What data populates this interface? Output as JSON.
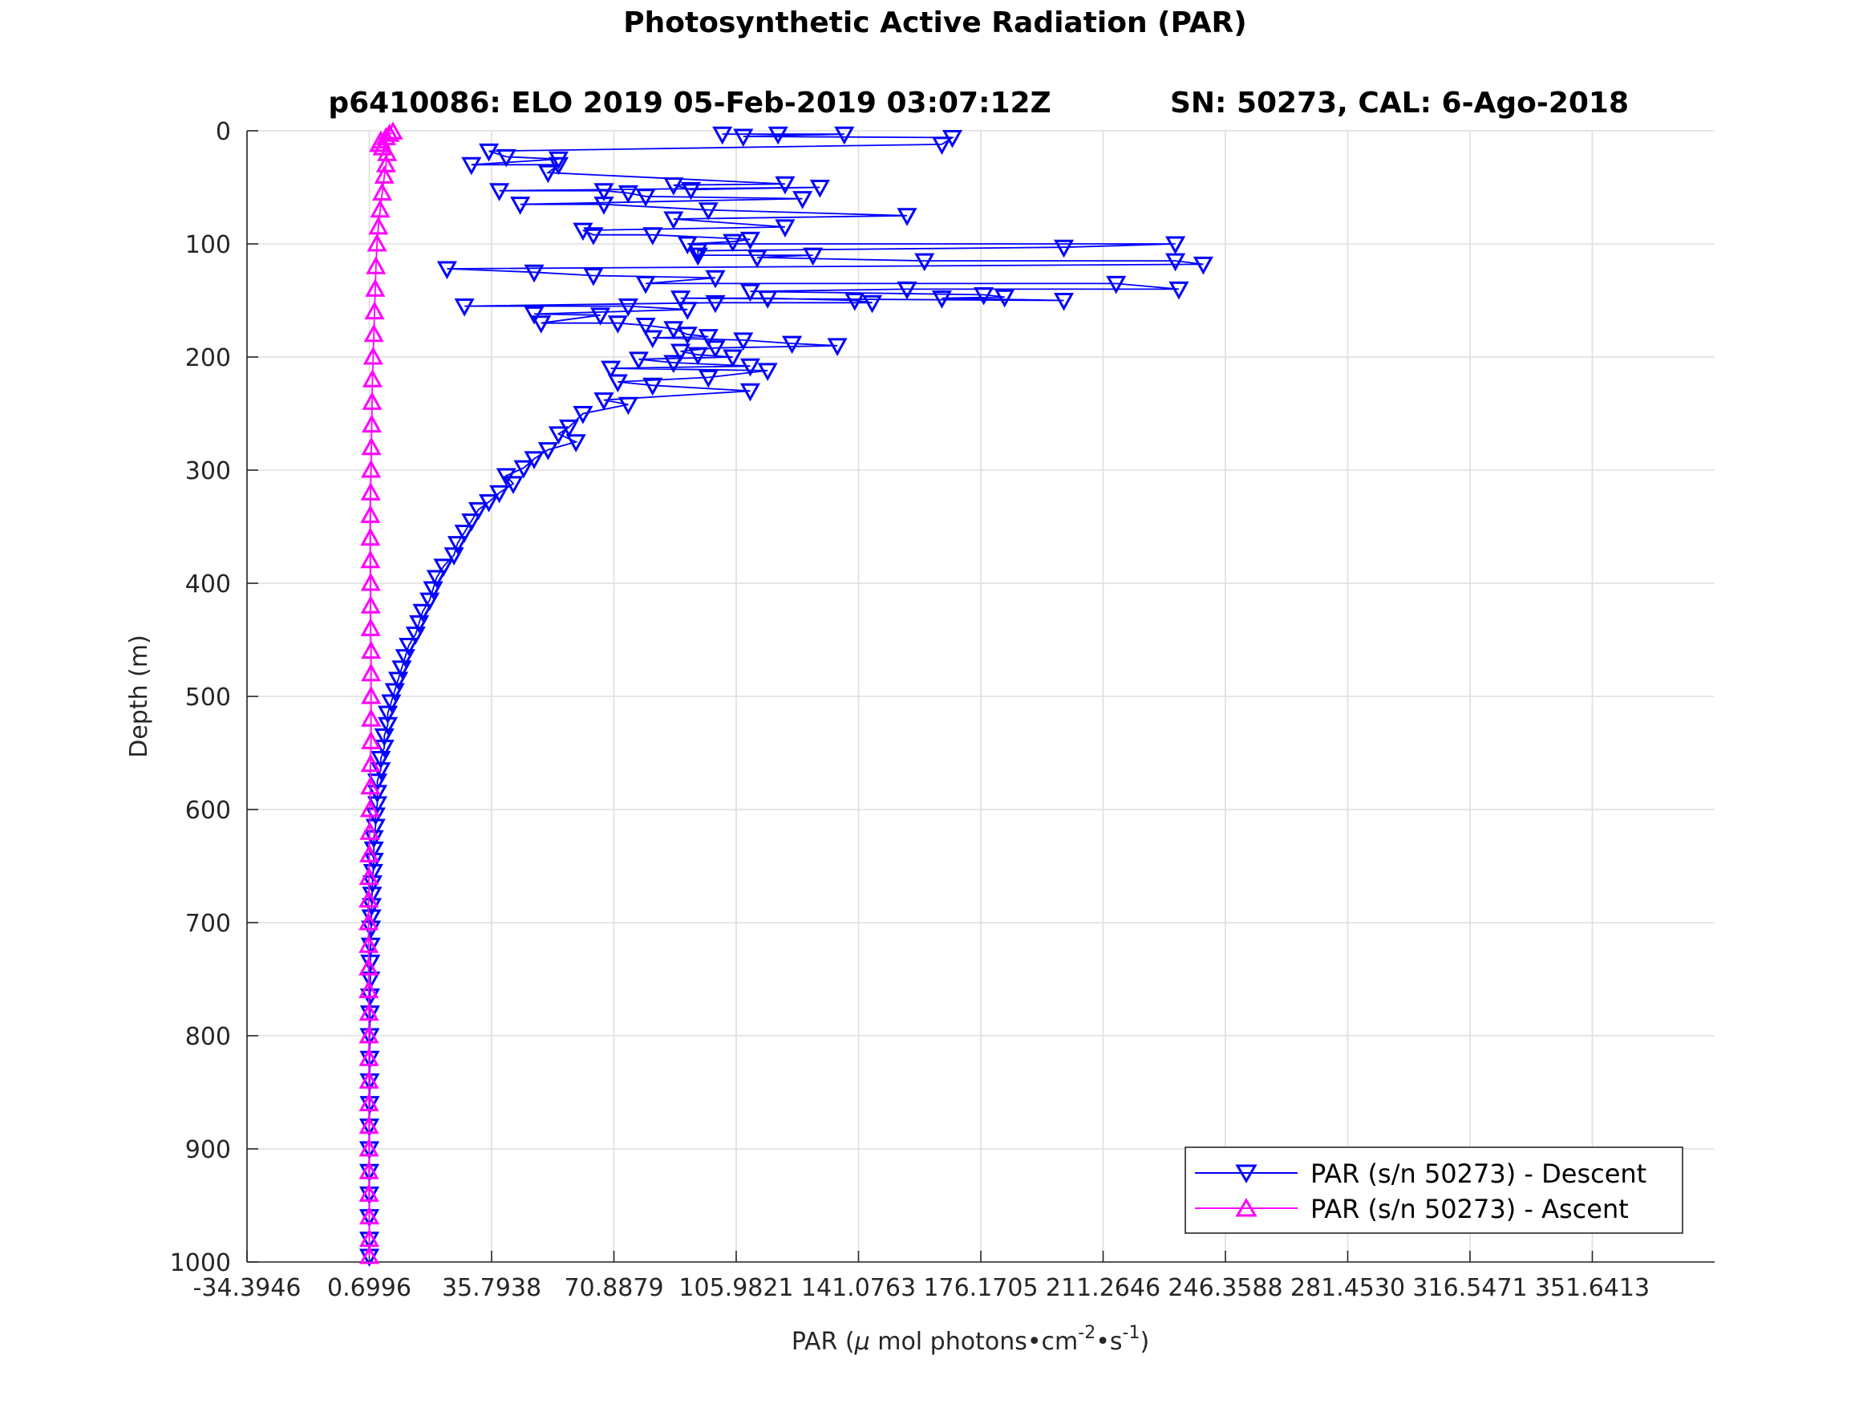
{
  "chart_data": {
    "type": "scatter",
    "title": "Photosynthetic Active Radiation (PAR)",
    "subtitle_left": "p6410086: ELO 2019 05-Feb-2019 03:07:12Z",
    "subtitle_right": "SN: 50273, CAL: 6-Ago-2018",
    "xlabel_prefix": "PAR (",
    "xlabel_mu": "μ",
    "xlabel_mid": " mol photons•cm",
    "xlabel_exp1": "-2",
    "xlabel_mid2": "•s",
    "xlabel_exp2": "-1",
    "xlabel_suffix": ")",
    "ylabel": "Depth (m)",
    "xlim": [
      -34.3946,
      386.7354
    ],
    "ylim": [
      0,
      1000
    ],
    "y_reversed": true,
    "grid": true,
    "legend_position": "bottom-right",
    "x_ticks": [
      -34.3946,
      0.6996,
      35.7938,
      70.8879,
      105.9821,
      141.0763,
      176.1705,
      211.2646,
      246.3588,
      281.453,
      316.5471,
      351.6413
    ],
    "x_tick_labels": [
      "-34.3946",
      "0.6996",
      "35.7938",
      "70.8879",
      "105.9821",
      "141.0763",
      "176.1705",
      "211.2646",
      "246.3588",
      "281.4530",
      "316.5471",
      "351.6413"
    ],
    "y_ticks": [
      0,
      100,
      200,
      300,
      400,
      500,
      600,
      700,
      800,
      900,
      1000
    ],
    "y_tick_labels": [
      "0",
      "100",
      "200",
      "300",
      "400",
      "500",
      "600",
      "700",
      "800",
      "900",
      "1000"
    ],
    "series": [
      {
        "name": "PAR (s/n 50273) - Descent",
        "color": "#0000ff",
        "marker": "triangle-down",
        "points": [
          [
            102,
            3
          ],
          [
            118,
            3
          ],
          [
            137,
            3
          ],
          [
            108,
            5
          ],
          [
            168,
            6
          ],
          [
            165,
            12
          ],
          [
            35,
            18
          ],
          [
            40,
            23
          ],
          [
            55,
            25
          ],
          [
            30,
            30
          ],
          [
            55,
            30
          ],
          [
            52,
            37
          ],
          [
            120,
            47
          ],
          [
            88,
            48
          ],
          [
            93,
            52
          ],
          [
            130,
            50
          ],
          [
            38,
            53
          ],
          [
            68,
            53
          ],
          [
            75,
            55
          ],
          [
            80,
            58
          ],
          [
            125,
            60
          ],
          [
            44,
            65
          ],
          [
            68,
            65
          ],
          [
            98,
            70
          ],
          [
            155,
            75
          ],
          [
            88,
            78
          ],
          [
            120,
            85
          ],
          [
            62,
            88
          ],
          [
            65,
            92
          ],
          [
            82,
            92
          ],
          [
            110,
            96
          ],
          [
            105,
            98
          ],
          [
            92,
            100
          ],
          [
            232,
            100
          ],
          [
            200,
            103
          ],
          [
            95,
            106
          ],
          [
            95,
            110
          ],
          [
            128,
            110
          ],
          [
            112,
            112
          ],
          [
            160,
            115
          ],
          [
            232,
            115
          ],
          [
            240,
            118
          ],
          [
            23,
            122
          ],
          [
            48,
            125
          ],
          [
            65,
            128
          ],
          [
            100,
            130
          ],
          [
            80,
            135
          ],
          [
            215,
            135
          ],
          [
            233,
            140
          ],
          [
            155,
            140
          ],
          [
            110,
            142
          ],
          [
            177,
            145
          ],
          [
            183,
            147
          ],
          [
            165,
            148
          ],
          [
            200,
            150
          ],
          [
            90,
            148
          ],
          [
            115,
            148
          ],
          [
            140,
            150
          ],
          [
            145,
            152
          ],
          [
            100,
            152
          ],
          [
            28,
            155
          ],
          [
            75,
            155
          ],
          [
            92,
            158
          ],
          [
            48,
            162
          ],
          [
            67,
            163
          ],
          [
            50,
            170
          ],
          [
            72,
            170
          ],
          [
            80,
            172
          ],
          [
            88,
            175
          ],
          [
            92,
            180
          ],
          [
            98,
            182
          ],
          [
            82,
            183
          ],
          [
            108,
            185
          ],
          [
            122,
            188
          ],
          [
            135,
            190
          ],
          [
            100,
            192
          ],
          [
            90,
            195
          ],
          [
            95,
            198
          ],
          [
            105,
            200
          ],
          [
            78,
            202
          ],
          [
            88,
            205
          ],
          [
            110,
            208
          ],
          [
            70,
            210
          ],
          [
            115,
            212
          ],
          [
            98,
            218
          ],
          [
            72,
            222
          ],
          [
            82,
            225
          ],
          [
            110,
            230
          ],
          [
            68,
            238
          ],
          [
            75,
            242
          ],
          [
            62,
            250
          ],
          [
            58,
            262
          ],
          [
            55,
            268
          ],
          [
            60,
            275
          ],
          [
            52,
            282
          ],
          [
            48,
            290
          ],
          [
            45,
            298
          ],
          [
            40,
            305
          ],
          [
            42,
            312
          ],
          [
            38,
            320
          ],
          [
            35,
            328
          ],
          [
            32,
            335
          ],
          [
            30,
            345
          ],
          [
            28,
            355
          ],
          [
            26,
            365
          ],
          [
            25,
            375
          ],
          [
            22,
            385
          ],
          [
            20,
            395
          ],
          [
            19,
            405
          ],
          [
            18,
            415
          ],
          [
            16,
            425
          ],
          [
            15,
            435
          ],
          [
            14,
            445
          ],
          [
            12,
            455
          ],
          [
            11,
            465
          ],
          [
            10,
            475
          ],
          [
            9,
            485
          ],
          [
            8,
            495
          ],
          [
            7,
            505
          ],
          [
            6,
            515
          ],
          [
            6,
            525
          ],
          [
            5,
            535
          ],
          [
            5,
            545
          ],
          [
            4,
            555
          ],
          [
            4,
            565
          ],
          [
            3,
            575
          ],
          [
            3,
            585
          ],
          [
            3,
            595
          ],
          [
            2.5,
            605
          ],
          [
            2.5,
            615
          ],
          [
            2,
            625
          ],
          [
            2,
            635
          ],
          [
            2,
            645
          ],
          [
            1.8,
            655
          ],
          [
            1.6,
            665
          ],
          [
            1.5,
            675
          ],
          [
            1.4,
            685
          ],
          [
            1.3,
            695
          ],
          [
            1.2,
            705
          ],
          [
            1.1,
            720
          ],
          [
            1,
            735
          ],
          [
            1,
            750
          ],
          [
            0.9,
            765
          ],
          [
            0.9,
            780
          ],
          [
            0.8,
            800
          ],
          [
            0.8,
            820
          ],
          [
            0.8,
            840
          ],
          [
            0.8,
            860
          ],
          [
            0.7,
            880
          ],
          [
            0.7,
            900
          ],
          [
            0.7,
            920
          ],
          [
            0.7,
            940
          ],
          [
            0.7,
            960
          ],
          [
            0.7,
            980
          ],
          [
            0.7,
            995
          ]
        ]
      },
      {
        "name": "PAR (s/n 50273) - Ascent",
        "color": "#ff00ff",
        "marker": "triangle-up",
        "points": [
          [
            0.7,
            995
          ],
          [
            0.7,
            980
          ],
          [
            0.7,
            960
          ],
          [
            0.6,
            940
          ],
          [
            0.6,
            920
          ],
          [
            0.6,
            900
          ],
          [
            0.6,
            880
          ],
          [
            0.6,
            860
          ],
          [
            0.6,
            840
          ],
          [
            0.6,
            820
          ],
          [
            0.6,
            800
          ],
          [
            0.6,
            780
          ],
          [
            0.5,
            760
          ],
          [
            0.5,
            740
          ],
          [
            0.5,
            720
          ],
          [
            0.5,
            700
          ],
          [
            0.5,
            680
          ],
          [
            0.6,
            660
          ],
          [
            0.7,
            640
          ],
          [
            0.8,
            620
          ],
          [
            0.9,
            600
          ],
          [
            1.0,
            580
          ],
          [
            1.1,
            560
          ],
          [
            1.2,
            540
          ],
          [
            1.2,
            520
          ],
          [
            1.2,
            500
          ],
          [
            1.2,
            480
          ],
          [
            1.2,
            460
          ],
          [
            1.1,
            440
          ],
          [
            1.1,
            420
          ],
          [
            1.1,
            400
          ],
          [
            1.0,
            380
          ],
          [
            1.0,
            360
          ],
          [
            1.0,
            340
          ],
          [
            1.1,
            320
          ],
          [
            1.2,
            300
          ],
          [
            1.3,
            280
          ],
          [
            1.4,
            260
          ],
          [
            1.5,
            240
          ],
          [
            1.6,
            220
          ],
          [
            1.8,
            200
          ],
          [
            2.0,
            180
          ],
          [
            2.2,
            160
          ],
          [
            2.4,
            140
          ],
          [
            2.6,
            120
          ],
          [
            2.9,
            100
          ],
          [
            3.3,
            85
          ],
          [
            3.8,
            70
          ],
          [
            4.4,
            55
          ],
          [
            5.0,
            40
          ],
          [
            5.5,
            30
          ],
          [
            5.8,
            20
          ],
          [
            4.5,
            15
          ],
          [
            3.5,
            12
          ],
          [
            4.0,
            9
          ],
          [
            5.5,
            6
          ],
          [
            6.5,
            3
          ],
          [
            7.5,
            1
          ]
        ]
      }
    ]
  }
}
